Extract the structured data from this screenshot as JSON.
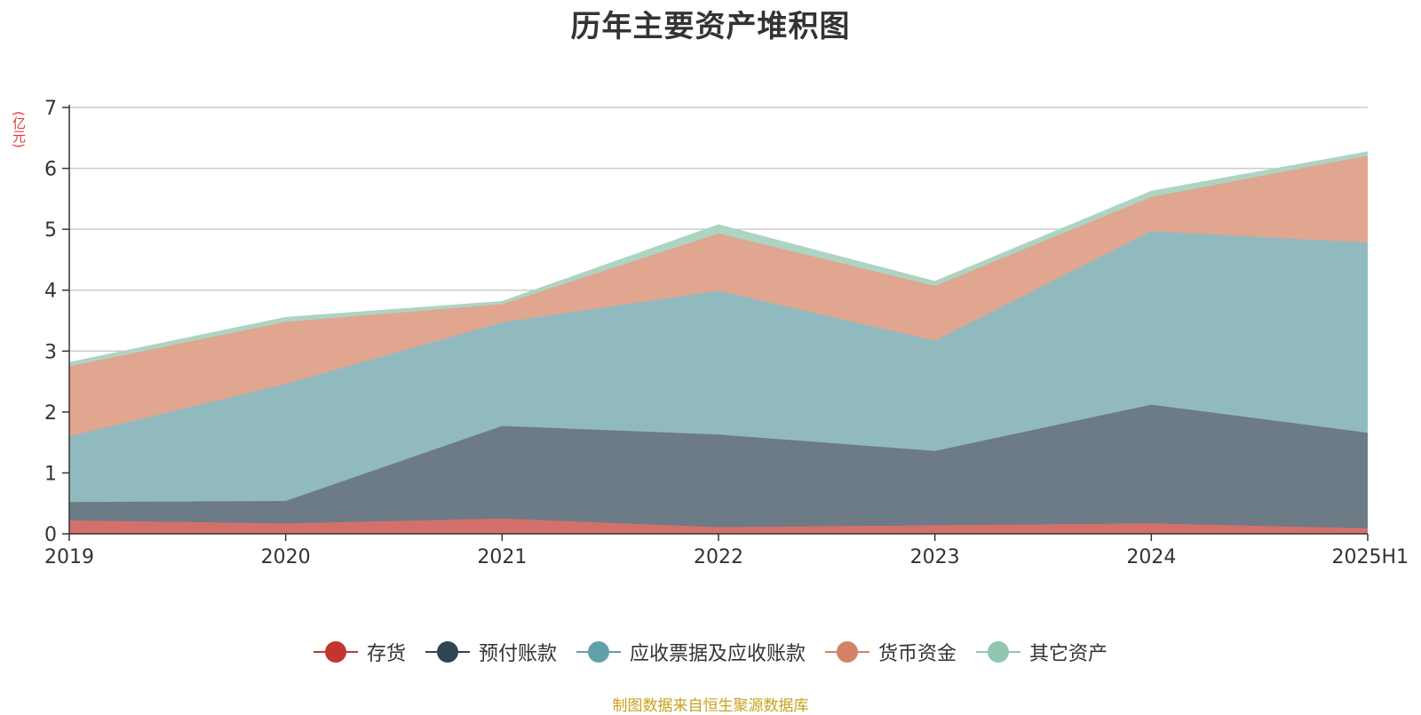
{
  "chart_data": {
    "type": "area",
    "stacked": true,
    "title": "历年主要资产堆积图",
    "yunit": "(亿元)",
    "categories": [
      "2019",
      "2020",
      "2021",
      "2022",
      "2023",
      "2024",
      "2025H1"
    ],
    "ylim": [
      0,
      7
    ],
    "yticks": [
      "0",
      "1",
      "2",
      "3",
      "4",
      "5",
      "6",
      "7"
    ],
    "grid": true,
    "legend_position": "bottom",
    "series": [
      {
        "name": "存货",
        "color": "#c23531",
        "area_color": "#d4706c",
        "values": [
          0.22,
          0.17,
          0.25,
          0.11,
          0.14,
          0.17,
          0.09
        ]
      },
      {
        "name": "预付账款",
        "color": "#2f4554",
        "area_color": "#6d7b86",
        "values": [
          0.3,
          0.37,
          1.52,
          1.52,
          1.22,
          1.95,
          1.57
        ]
      },
      {
        "name": "应收票据及应收账款",
        "color": "#61a0a8",
        "area_color": "#91babf",
        "values": [
          1.08,
          1.92,
          1.7,
          2.36,
          1.81,
          2.85,
          3.12
        ]
      },
      {
        "name": "货币资金",
        "color": "#d48265",
        "area_color": "#e0a690",
        "values": [
          1.15,
          1.02,
          0.3,
          0.94,
          0.9,
          0.56,
          1.43
        ]
      },
      {
        "name": "其它资产",
        "color": "#91c7ae",
        "area_color": "#add4c2",
        "values": [
          0.06,
          0.07,
          0.04,
          0.14,
          0.07,
          0.09,
          0.06
        ]
      }
    ]
  },
  "source": "制图数据来自恒生聚源数据库"
}
